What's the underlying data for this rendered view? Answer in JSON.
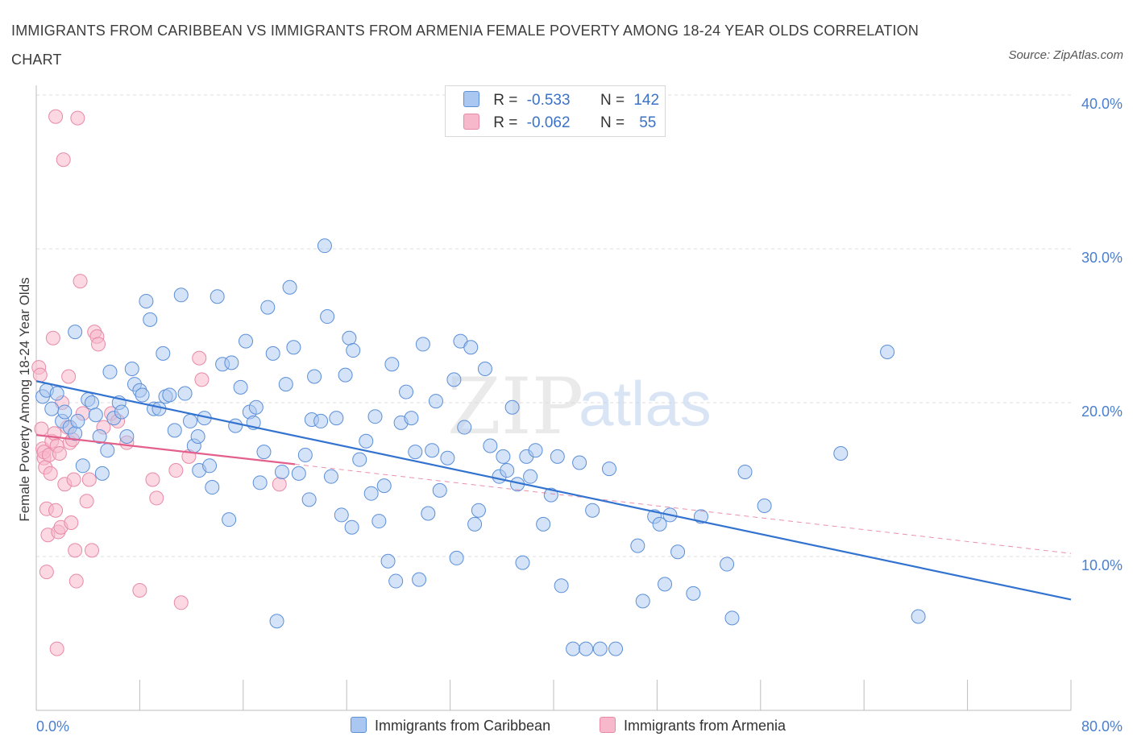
{
  "header": {
    "title": "IMMIGRANTS FROM CARIBBEAN VS IMMIGRANTS FROM ARMENIA FEMALE POVERTY AMONG 18-24 YEAR OLDS CORRELATION CHART",
    "source": "Source: ZipAtlas.com"
  },
  "watermark": {
    "zip": "ZIP",
    "atlas": "atlas"
  },
  "legend_top": {
    "r_label": "R =",
    "n_label": "N =",
    "caribbean": {
      "r": "-0.533",
      "n": "142"
    },
    "armenia": {
      "r": "-0.062",
      "n": "55"
    }
  },
  "colors": {
    "caribbean_fill": "#a9c7f0",
    "caribbean_stroke": "#5b8fd8",
    "caribbean_line": "#3373d0",
    "armenia_fill": "#f7b8cb",
    "armenia_stroke": "#e88aa7",
    "armenia_line": "#e3608c",
    "tick": "#4a7fcf"
  },
  "chart_data": {
    "type": "scatter",
    "title": "IMMIGRANTS FROM CARIBBEAN VS IMMIGRANTS FROM ARMENIA FEMALE POVERTY AMONG 18-24 YEAR OLDS CORRELATION CHART",
    "xlabel": "",
    "ylabel": "Female Poverty Among 18-24 Year Olds",
    "xlim": [
      0,
      80
    ],
    "ylim": [
      0,
      40
    ],
    "x_tick_labels": [
      "0.0%",
      "80.0%"
    ],
    "y_ticks": [
      10,
      20,
      30,
      40
    ],
    "y_tick_labels": [
      "10.0%",
      "20.0%",
      "30.0%",
      "40.0%"
    ],
    "grid": "horizontal dashed",
    "legend": "bottom-center",
    "series": [
      {
        "name": "Immigrants from Caribbean",
        "r": -0.533,
        "n": 142,
        "trend": {
          "x": [
            0,
            80
          ],
          "y": [
            21.4,
            7.2
          ]
        },
        "points": [
          [
            0.5,
            20.4
          ],
          [
            0.8,
            20.8
          ],
          [
            1.2,
            19.6
          ],
          [
            1.6,
            20.6
          ],
          [
            2.0,
            18.8
          ],
          [
            2.2,
            19.4
          ],
          [
            2.6,
            18.4
          ],
          [
            3.0,
            18.0
          ],
          [
            3.2,
            18.8
          ],
          [
            3.6,
            15.9
          ],
          [
            3.0,
            24.6
          ],
          [
            4.0,
            20.2
          ],
          [
            4.3,
            20.0
          ],
          [
            4.6,
            19.2
          ],
          [
            4.9,
            17.8
          ],
          [
            5.1,
            15.4
          ],
          [
            5.5,
            16.9
          ],
          [
            5.7,
            22.0
          ],
          [
            6.0,
            19.0
          ],
          [
            6.4,
            20.0
          ],
          [
            6.6,
            19.4
          ],
          [
            7.0,
            17.8
          ],
          [
            7.4,
            22.2
          ],
          [
            7.6,
            21.2
          ],
          [
            8.0,
            20.8
          ],
          [
            8.2,
            20.5
          ],
          [
            8.5,
            26.6
          ],
          [
            8.8,
            25.4
          ],
          [
            9.1,
            19.6
          ],
          [
            9.5,
            19.6
          ],
          [
            9.8,
            23.2
          ],
          [
            10.0,
            20.4
          ],
          [
            10.3,
            20.5
          ],
          [
            10.7,
            18.2
          ],
          [
            11.2,
            27.0
          ],
          [
            11.5,
            20.6
          ],
          [
            11.9,
            18.8
          ],
          [
            12.2,
            17.2
          ],
          [
            12.5,
            17.8
          ],
          [
            12.6,
            15.6
          ],
          [
            13.0,
            19.0
          ],
          [
            13.4,
            15.9
          ],
          [
            13.6,
            14.5
          ],
          [
            14.0,
            26.9
          ],
          [
            14.4,
            22.5
          ],
          [
            14.9,
            12.4
          ],
          [
            15.1,
            22.6
          ],
          [
            15.4,
            18.5
          ],
          [
            15.8,
            21.0
          ],
          [
            16.2,
            24.0
          ],
          [
            16.5,
            19.4
          ],
          [
            16.8,
            18.7
          ],
          [
            17.0,
            19.7
          ],
          [
            17.3,
            14.8
          ],
          [
            17.6,
            16.8
          ],
          [
            17.9,
            26.2
          ],
          [
            18.3,
            23.2
          ],
          [
            18.6,
            5.8
          ],
          [
            19.0,
            15.5
          ],
          [
            19.3,
            21.2
          ],
          [
            19.6,
            27.5
          ],
          [
            19.9,
            23.6
          ],
          [
            20.3,
            15.4
          ],
          [
            20.8,
            16.6
          ],
          [
            21.1,
            13.7
          ],
          [
            21.3,
            18.9
          ],
          [
            21.5,
            21.7
          ],
          [
            22.0,
            18.8
          ],
          [
            22.3,
            30.2
          ],
          [
            22.5,
            25.6
          ],
          [
            22.8,
            15.2
          ],
          [
            23.2,
            19.0
          ],
          [
            23.6,
            12.7
          ],
          [
            23.9,
            21.8
          ],
          [
            24.2,
            24.2
          ],
          [
            24.4,
            11.9
          ],
          [
            24.5,
            23.4
          ],
          [
            25.0,
            16.3
          ],
          [
            25.5,
            17.5
          ],
          [
            25.9,
            14.1
          ],
          [
            26.2,
            19.1
          ],
          [
            26.5,
            12.3
          ],
          [
            26.9,
            14.6
          ],
          [
            27.2,
            9.7
          ],
          [
            27.5,
            22.5
          ],
          [
            27.8,
            8.4
          ],
          [
            28.2,
            18.7
          ],
          [
            28.6,
            20.7
          ],
          [
            29.0,
            19.0
          ],
          [
            29.3,
            16.8
          ],
          [
            29.6,
            8.5
          ],
          [
            29.9,
            23.8
          ],
          [
            30.3,
            12.8
          ],
          [
            30.6,
            16.9
          ],
          [
            30.9,
            20.1
          ],
          [
            31.2,
            14.3
          ],
          [
            31.8,
            16.4
          ],
          [
            32.3,
            21.5
          ],
          [
            32.5,
            9.9
          ],
          [
            32.8,
            24.0
          ],
          [
            33.1,
            18.4
          ],
          [
            33.6,
            23.6
          ],
          [
            33.9,
            12.1
          ],
          [
            34.2,
            13.0
          ],
          [
            34.7,
            22.2
          ],
          [
            35.1,
            17.2
          ],
          [
            35.8,
            15.2
          ],
          [
            36.1,
            16.5
          ],
          [
            36.4,
            15.6
          ],
          [
            36.8,
            19.7
          ],
          [
            37.2,
            14.7
          ],
          [
            37.6,
            9.6
          ],
          [
            37.9,
            16.5
          ],
          [
            38.2,
            15.2
          ],
          [
            38.6,
            16.9
          ],
          [
            39.2,
            12.1
          ],
          [
            39.8,
            14.0
          ],
          [
            40.3,
            16.5
          ],
          [
            40.6,
            8.1
          ],
          [
            41.5,
            4.0
          ],
          [
            42.0,
            16.1
          ],
          [
            42.5,
            4.0
          ],
          [
            43.0,
            13.0
          ],
          [
            43.6,
            4.0
          ],
          [
            44.3,
            15.7
          ],
          [
            44.8,
            4.0
          ],
          [
            46.5,
            10.7
          ],
          [
            46.9,
            7.1
          ],
          [
            47.8,
            12.6
          ],
          [
            48.2,
            12.1
          ],
          [
            48.6,
            8.2
          ],
          [
            49.0,
            12.7
          ],
          [
            49.6,
            10.3
          ],
          [
            50.8,
            7.6
          ],
          [
            51.4,
            12.6
          ],
          [
            53.4,
            9.5
          ],
          [
            53.8,
            6.0
          ],
          [
            54.8,
            15.5
          ],
          [
            56.3,
            13.3
          ],
          [
            62.2,
            16.7
          ],
          [
            65.8,
            23.3
          ],
          [
            68.2,
            6.1
          ]
        ]
      },
      {
        "name": "Immigrants from Armenia",
        "r": -0.062,
        "n": 55,
        "trend": {
          "x": [
            0,
            20
          ],
          "y": [
            17.9,
            16.0
          ]
        },
        "trend_extended": {
          "x": [
            20,
            80
          ],
          "y": [
            16.0,
            10.2
          ]
        },
        "points": [
          [
            0.2,
            22.3
          ],
          [
            0.3,
            21.8
          ],
          [
            0.4,
            18.3
          ],
          [
            0.5,
            17.0
          ],
          [
            0.6,
            16.4
          ],
          [
            0.6,
            16.8
          ],
          [
            0.7,
            15.8
          ],
          [
            0.8,
            13.1
          ],
          [
            0.8,
            9.0
          ],
          [
            0.9,
            11.4
          ],
          [
            1.0,
            16.6
          ],
          [
            1.1,
            15.4
          ],
          [
            1.2,
            17.5
          ],
          [
            1.3,
            24.2
          ],
          [
            1.4,
            18.0
          ],
          [
            1.5,
            13.0
          ],
          [
            1.6,
            17.2
          ],
          [
            1.7,
            11.6
          ],
          [
            1.5,
            38.6
          ],
          [
            1.6,
            4.0
          ],
          [
            1.8,
            16.7
          ],
          [
            1.9,
            11.9
          ],
          [
            2.0,
            20.0
          ],
          [
            2.2,
            14.7
          ],
          [
            2.1,
            35.8
          ],
          [
            2.4,
            18.4
          ],
          [
            2.5,
            21.7
          ],
          [
            2.6,
            17.4
          ],
          [
            2.7,
            12.2
          ],
          [
            2.8,
            17.6
          ],
          [
            2.9,
            15.0
          ],
          [
            3.0,
            10.4
          ],
          [
            3.1,
            8.4
          ],
          [
            3.2,
            38.5
          ],
          [
            3.4,
            27.9
          ],
          [
            3.6,
            19.3
          ],
          [
            3.9,
            13.6
          ],
          [
            4.1,
            15.0
          ],
          [
            4.3,
            10.4
          ],
          [
            4.5,
            24.6
          ],
          [
            4.7,
            24.3
          ],
          [
            4.8,
            23.8
          ],
          [
            5.2,
            18.4
          ],
          [
            5.8,
            19.3
          ],
          [
            6.3,
            18.8
          ],
          [
            7.0,
            17.4
          ],
          [
            8.0,
            7.8
          ],
          [
            9.0,
            15.0
          ],
          [
            9.3,
            13.8
          ],
          [
            10.8,
            15.6
          ],
          [
            11.2,
            7.0
          ],
          [
            11.8,
            16.5
          ],
          [
            12.6,
            22.9
          ],
          [
            12.8,
            21.5
          ],
          [
            18.8,
            14.7
          ]
        ]
      }
    ]
  },
  "legend_bottom": {
    "caribbean": "Immigrants from Caribbean",
    "armenia": "Immigrants from Armenia"
  }
}
